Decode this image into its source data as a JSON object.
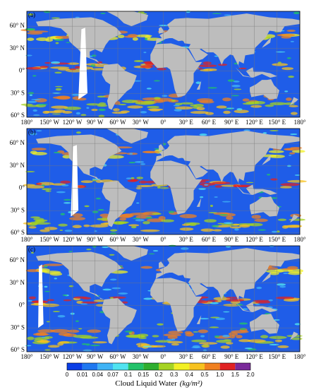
{
  "panels": [
    {
      "label": "(a)",
      "lat_labels": [
        "60° N",
        "30° N",
        "0°",
        "30° S",
        "60° S"
      ],
      "lon_labels": [
        "180°",
        "150° W",
        "120° W",
        "90° W",
        "60° W",
        "30° W",
        "0°",
        "30° E",
        "60° E",
        "90° E",
        "120° E",
        "150° E",
        "180°"
      ]
    },
    {
      "label": "(b)",
      "lat_labels": [
        "60° N",
        "30° N",
        "0°",
        "30° S",
        "60° S"
      ],
      "lon_labels": [
        "180°",
        "150° W",
        "120° W",
        "90° W",
        "60° W",
        "30° W",
        "0°",
        "30° E",
        "60° E",
        "90° E",
        "120° E",
        "150° E",
        "180°"
      ]
    },
    {
      "label": "(c)",
      "lat_labels": [
        "60° N",
        "30° N",
        "0°",
        "30° S",
        "60° S"
      ],
      "lon_labels": [
        "180°",
        "150° W",
        "120° W",
        "90° W",
        "60° W",
        "30° W",
        "0°",
        "30° E",
        "60° E",
        "90° E",
        "120° E",
        "150° E",
        "180°"
      ]
    }
  ],
  "colorbar": {
    "title": "Cloud Liquid Water",
    "unit": "(kg/m²)",
    "labels": [
      "0",
      "0.01",
      "0.04",
      "0.07",
      "0.1",
      "0.15",
      "0.2",
      "0.3",
      "0.4",
      "0.5",
      "1.0",
      "1.5",
      "2.0"
    ],
    "colors": [
      "#0a3ee6",
      "#1f78f0",
      "#3fb3f5",
      "#50e3f0",
      "#22c26a",
      "#2fae2f",
      "#a5d322",
      "#f2f024",
      "#f7c21f",
      "#f08020",
      "#e02222",
      "#7a2a9a"
    ]
  }
}
